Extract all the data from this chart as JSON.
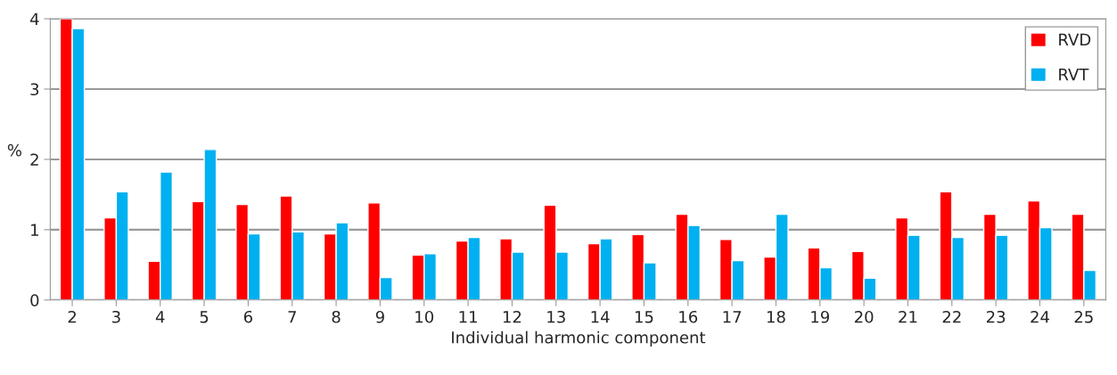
{
  "chart_data": {
    "type": "bar",
    "xlabel": "Individual harmonic component",
    "ylabel": "%",
    "categories": [
      "2",
      "3",
      "4",
      "5",
      "6",
      "7",
      "8",
      "9",
      "10",
      "11",
      "12",
      "13",
      "14",
      "15",
      "16",
      "17",
      "18",
      "19",
      "20",
      "21",
      "22",
      "23",
      "24",
      "25"
    ],
    "series": [
      {
        "name": "RVD",
        "color": "#ff0000",
        "values": [
          4.0,
          1.17,
          0.55,
          1.4,
          1.36,
          1.48,
          0.94,
          1.38,
          0.64,
          0.84,
          0.87,
          1.35,
          0.8,
          0.93,
          1.22,
          0.86,
          0.61,
          0.74,
          0.69,
          1.17,
          1.54,
          1.22,
          1.41,
          1.22
        ]
      },
      {
        "name": "RVT",
        "color": "#00b0f0",
        "values": [
          3.86,
          1.54,
          1.82,
          2.14,
          0.94,
          0.97,
          1.1,
          0.32,
          0.66,
          0.89,
          0.68,
          0.68,
          0.87,
          0.53,
          1.06,
          0.56,
          1.22,
          0.46,
          0.31,
          0.92,
          0.89,
          0.92,
          1.03,
          0.42
        ]
      }
    ],
    "ylim": [
      0,
      4
    ],
    "yticks": [
      0,
      1,
      2,
      3,
      4
    ],
    "grid": "y",
    "legend": "top right"
  }
}
